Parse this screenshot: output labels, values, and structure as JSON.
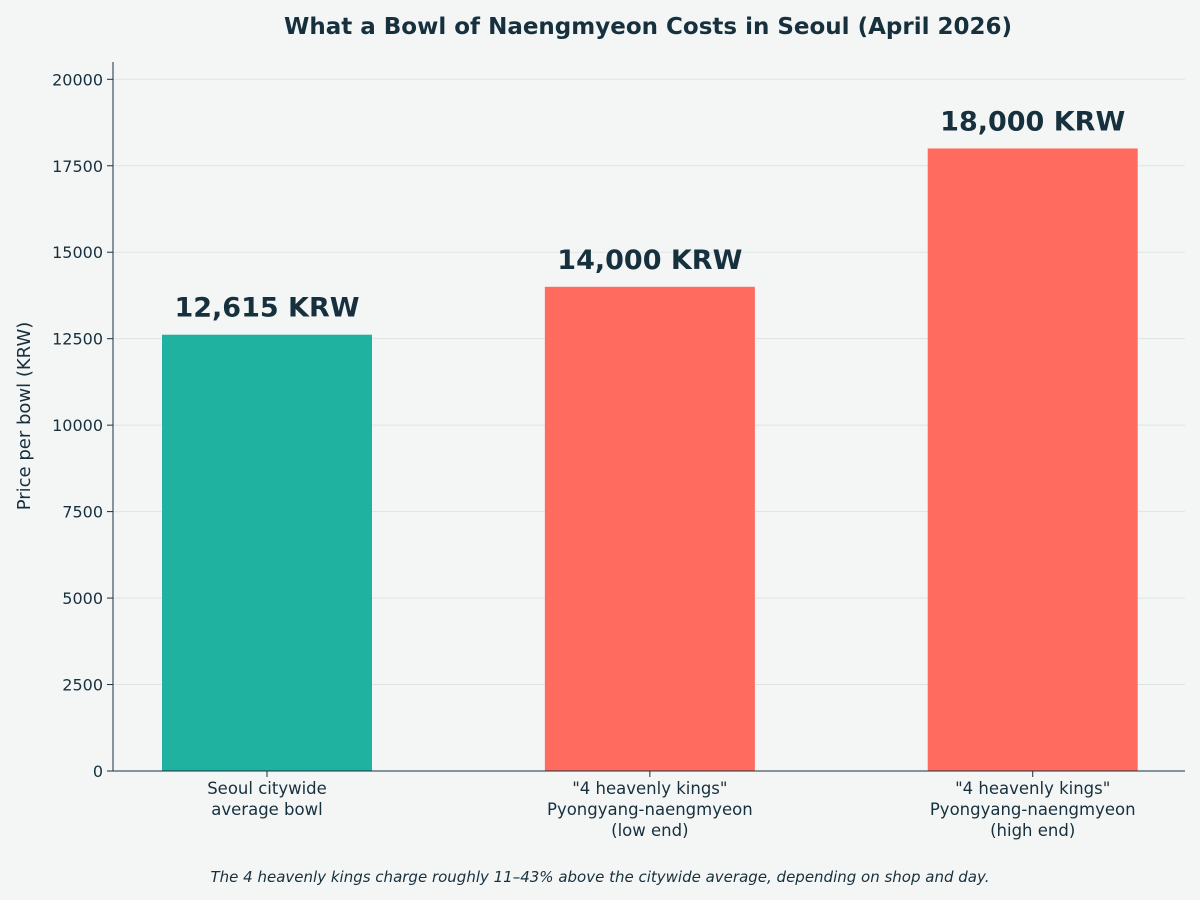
{
  "chart_data": {
    "type": "bar",
    "title": "What a Bowl of Naengmyeon Costs in Seoul (April 2026)",
    "xlabel": "",
    "ylabel": "Price per bowl (KRW)",
    "ylim": [
      0,
      20500
    ],
    "yticks": [
      0,
      2500,
      5000,
      7500,
      10000,
      12500,
      15000,
      17500,
      20000
    ],
    "grid": "horizontal",
    "categories": [
      [
        "Seoul citywide",
        "average bowl"
      ],
      [
        "\"4 heavenly kings\"",
        "Pyongyang-naengmyeon",
        "(low end)"
      ],
      [
        "\"4 heavenly kings\"",
        "Pyongyang-naengmyeon",
        "(high end)"
      ]
    ],
    "values": [
      12615,
      14000,
      18000
    ],
    "value_labels": [
      "12,615 KRW",
      "14,000 KRW",
      "18,000 KRW"
    ],
    "colors": [
      "#20b2a0",
      "#ff6b5e",
      "#ff6b5e"
    ],
    "caption": "The 4 heavenly kings charge roughly 11–43% above the citywide average, depending on shop and day."
  }
}
